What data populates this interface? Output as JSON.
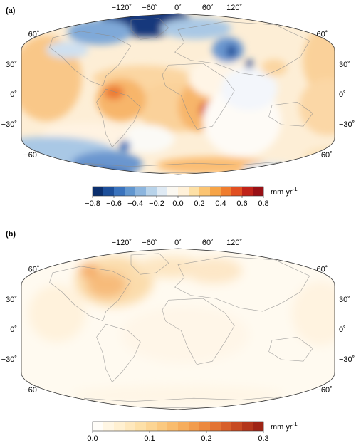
{
  "panels": [
    {
      "id": "a",
      "label": "(a)",
      "lon_ticks": [
        "−120˚",
        "−60˚",
        "0˚",
        "60˚",
        "120˚"
      ],
      "lat_ticks_left": [
        "60˚",
        "30˚",
        "0˚",
        "−30˚",
        "−60˚"
      ],
      "lat_ticks_right": [
        "60˚",
        "30˚",
        "0˚",
        "−30˚",
        "−60˚"
      ],
      "colorbar": {
        "type": "diverging",
        "range": [
          -0.8,
          0.8
        ],
        "tick_labels": [
          "−0.8",
          "−0.6",
          "−0.4",
          "−0.2",
          "0.0",
          "0.2",
          "0.4",
          "0.6",
          "0.8"
        ],
        "unit": "mm yr",
        "unit_exp": "-1",
        "colors": [
          "#0b2f6e",
          "#1d4f9a",
          "#3a73bd",
          "#6196cf",
          "#8cb5de",
          "#b8d3ea",
          "#dfeaf4",
          "#fbf8f1",
          "#fff1d9",
          "#fde0a6",
          "#fbc472",
          "#f6a447",
          "#ef7d2e",
          "#e14f21",
          "#c02319",
          "#981015"
        ]
      }
    },
    {
      "id": "b",
      "label": "(b)",
      "lon_ticks": [
        "−120˚",
        "−60˚",
        "0˚",
        "60˚",
        "120˚"
      ],
      "lat_ticks_left": [
        "60˚",
        "30˚",
        "0˚",
        "−30˚",
        "−60˚"
      ],
      "lat_ticks_right": [
        "60˚",
        "30˚",
        "0˚",
        "−30˚",
        "−60˚"
      ],
      "colorbar": {
        "type": "sequential",
        "range": [
          0.0,
          0.3
        ],
        "tick_labels": [
          "0.0",
          "0.1",
          "0.2",
          "0.3"
        ],
        "unit": "mm yr",
        "unit_exp": "-1",
        "colors": [
          "#fffdf8",
          "#fff6e3",
          "#fff0d1",
          "#fee8bd",
          "#fde0a8",
          "#fcd594",
          "#fbc980",
          "#f9bc6e",
          "#f6ad5d",
          "#f29c4d",
          "#ec893f",
          "#e37434",
          "#d75f2a",
          "#c74a22",
          "#b3361b",
          "#9e2415"
        ]
      }
    }
  ]
}
